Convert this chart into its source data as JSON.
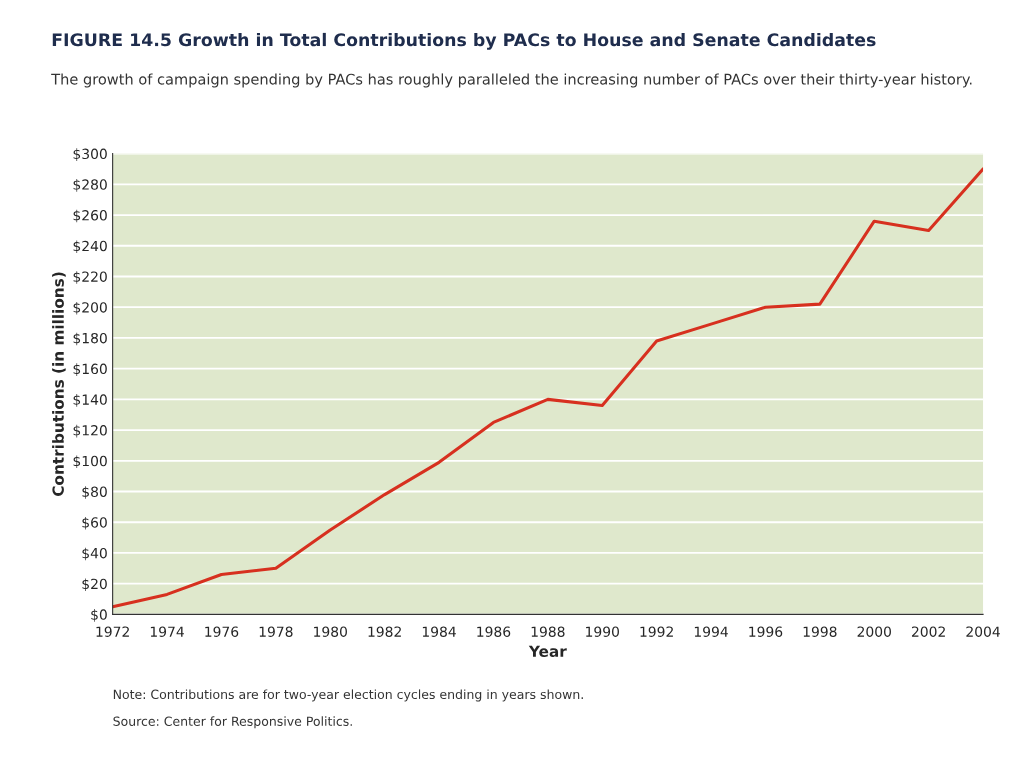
{
  "chart_data": {
    "type": "line",
    "title": "FIGURE 14.5 Growth in Total Contributions by PACs to House and Senate Candidates",
    "subtitle": "The growth of campaign spending by PACs has roughly paralleled the increasing number of PACs over their thirty-year history.",
    "xlabel": "Year",
    "ylabel": "Contributions (in millions)",
    "annotations": [
      "Note: Contributions are for two-year election cycles ending in years shown.",
      "Source: Center for Responsive Politics."
    ],
    "x": [
      1972,
      1974,
      1976,
      1978,
      1980,
      1982,
      1984,
      1986,
      1988,
      1990,
      1992,
      1994,
      1996,
      1998,
      2000,
      2002,
      2004
    ],
    "series": [
      {
        "color": "#d7301f",
        "values": [
          5,
          13,
          26,
          30,
          55,
          78,
          99,
          125,
          140,
          136,
          178,
          189,
          200,
          202,
          256,
          250,
          290
        ]
      }
    ],
    "xlim": [
      1972,
      2004
    ],
    "xticks": [
      1972,
      1974,
      1976,
      1978,
      1980,
      1982,
      1984,
      1986,
      1988,
      1990,
      1992,
      1994,
      1996,
      1998,
      2000,
      2002,
      2004
    ],
    "ylim": [
      0,
      300
    ],
    "yticks": [
      {
        "value": 0,
        "label": "$0"
      },
      {
        "value": 20,
        "label": "$20"
      },
      {
        "value": 40,
        "label": "$40"
      },
      {
        "value": 60,
        "label": "$60"
      },
      {
        "value": 80,
        "label": "$80"
      },
      {
        "value": 100,
        "label": "$100"
      },
      {
        "value": 120,
        "label": "$120"
      },
      {
        "value": 140,
        "label": "$140"
      },
      {
        "value": 160,
        "label": "$160"
      },
      {
        "value": 180,
        "label": "$180"
      },
      {
        "value": 200,
        "label": "$200"
      },
      {
        "value": 220,
        "label": "$220"
      },
      {
        "value": 240,
        "label": "$240"
      },
      {
        "value": 260,
        "label": "$260"
      },
      {
        "value": 280,
        "label": "$280"
      },
      {
        "value": 300,
        "label": "$300"
      }
    ],
    "grid": "y",
    "marker": "none",
    "line_style": "solid"
  }
}
